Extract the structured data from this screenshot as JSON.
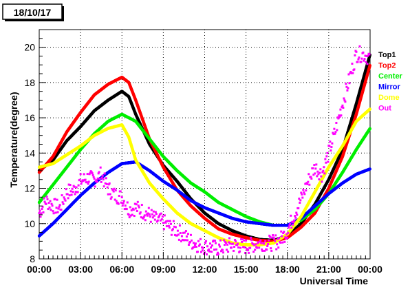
{
  "chart_data": {
    "type": "scatter",
    "title": "18/10/17",
    "xlabel": "Universal Time",
    "ylabel": "Temperature(degree)",
    "x_unit": "hours UT",
    "xlim": [
      0,
      24
    ],
    "ylim": [
      8,
      21
    ],
    "x_tick_labels": [
      "00:00",
      "03:00",
      "06:00",
      "09:00",
      "12:00",
      "15:00",
      "18:00",
      "21:00",
      "00:00"
    ],
    "x_tick_values": [
      0,
      3,
      6,
      9,
      12,
      15,
      18,
      21,
      24
    ],
    "y_tick_values": [
      8,
      10,
      12,
      14,
      16,
      18,
      20
    ],
    "grid": true,
    "legend_position": "right",
    "series": [
      {
        "name": "Top1",
        "color": "#000000",
        "points": [
          [
            0,
            13.0
          ],
          [
            1,
            13.6
          ],
          [
            2,
            14.7
          ],
          [
            3,
            15.5
          ],
          [
            4,
            16.4
          ],
          [
            5,
            17.0
          ],
          [
            6,
            17.5
          ],
          [
            6.5,
            17.2
          ],
          [
            7,
            16.2
          ],
          [
            8,
            14.5
          ],
          [
            9,
            13.3
          ],
          [
            10,
            12.4
          ],
          [
            11,
            11.4
          ],
          [
            12,
            10.6
          ],
          [
            13,
            10.0
          ],
          [
            14,
            9.6
          ],
          [
            15,
            9.3
          ],
          [
            16,
            9.1
          ],
          [
            17,
            9.05
          ],
          [
            18,
            9.3
          ],
          [
            19,
            10.0
          ],
          [
            20,
            11.1
          ],
          [
            21,
            12.5
          ],
          [
            22,
            14.2
          ],
          [
            23,
            16.8
          ],
          [
            24,
            19.6
          ]
        ]
      },
      {
        "name": "Top2",
        "color": "#ff0000",
        "points": [
          [
            0,
            12.9
          ],
          [
            1,
            13.8
          ],
          [
            2,
            15.2
          ],
          [
            3,
            16.3
          ],
          [
            4,
            17.3
          ],
          [
            5,
            17.9
          ],
          [
            6,
            18.3
          ],
          [
            6.5,
            18.0
          ],
          [
            7,
            17.0
          ],
          [
            8,
            14.8
          ],
          [
            9,
            13.2
          ],
          [
            10,
            11.9
          ],
          [
            11,
            11.0
          ],
          [
            12,
            10.3
          ],
          [
            13,
            9.7
          ],
          [
            14,
            9.4
          ],
          [
            15,
            9.2
          ],
          [
            16,
            9.05
          ],
          [
            17,
            9.0
          ],
          [
            18,
            9.2
          ],
          [
            19,
            9.8
          ],
          [
            20,
            10.6
          ],
          [
            21,
            12.0
          ],
          [
            22,
            13.8
          ],
          [
            23,
            16.2
          ],
          [
            24,
            19.0
          ]
        ]
      },
      {
        "name": "Center",
        "color": "#00ee00",
        "points": [
          [
            0,
            11.2
          ],
          [
            1,
            12.2
          ],
          [
            2,
            13.2
          ],
          [
            3,
            14.2
          ],
          [
            4,
            15.1
          ],
          [
            5,
            15.8
          ],
          [
            6,
            16.2
          ],
          [
            7,
            15.8
          ],
          [
            8,
            14.8
          ],
          [
            9,
            13.8
          ],
          [
            10,
            13.0
          ],
          [
            11,
            12.3
          ],
          [
            12,
            11.8
          ],
          [
            13,
            11.2
          ],
          [
            14,
            10.8
          ],
          [
            15,
            10.4
          ],
          [
            16,
            10.1
          ],
          [
            17,
            9.9
          ],
          [
            18,
            9.9
          ],
          [
            19,
            10.2
          ],
          [
            20,
            10.8
          ],
          [
            21,
            11.7
          ],
          [
            22,
            12.9
          ],
          [
            23,
            14.2
          ],
          [
            24,
            15.4
          ]
        ]
      },
      {
        "name": "Mirror",
        "color": "#0000ff",
        "points": [
          [
            0,
            9.3
          ],
          [
            1,
            10.0
          ],
          [
            2,
            10.8
          ],
          [
            3,
            11.6
          ],
          [
            4,
            12.3
          ],
          [
            5,
            12.9
          ],
          [
            6,
            13.4
          ],
          [
            7,
            13.5
          ],
          [
            8,
            13.0
          ],
          [
            9,
            12.4
          ],
          [
            10,
            11.9
          ],
          [
            11,
            11.3
          ],
          [
            12,
            10.9
          ],
          [
            13,
            10.6
          ],
          [
            14,
            10.3
          ],
          [
            15,
            10.1
          ],
          [
            16,
            10.0
          ],
          [
            17,
            9.9
          ],
          [
            18,
            9.9
          ],
          [
            19,
            10.3
          ],
          [
            20,
            11.0
          ],
          [
            21,
            11.7
          ],
          [
            22,
            12.3
          ],
          [
            23,
            12.8
          ],
          [
            24,
            13.1
          ]
        ]
      },
      {
        "name": "Dome",
        "color": "#ffff00",
        "points": [
          [
            0,
            13.2
          ],
          [
            1,
            13.4
          ],
          [
            2,
            13.9
          ],
          [
            3,
            14.4
          ],
          [
            4,
            15.0
          ],
          [
            5,
            15.4
          ],
          [
            6,
            15.6
          ],
          [
            6.5,
            14.9
          ],
          [
            7,
            13.6
          ],
          [
            8,
            12.3
          ],
          [
            9,
            11.4
          ],
          [
            10,
            10.6
          ],
          [
            11,
            10.0
          ],
          [
            12,
            9.6
          ],
          [
            13,
            9.2
          ],
          [
            14,
            8.9
          ],
          [
            15,
            8.8
          ],
          [
            16,
            8.8
          ],
          [
            17,
            8.9
          ],
          [
            18,
            9.4
          ],
          [
            19,
            10.4
          ],
          [
            20,
            11.8
          ],
          [
            21,
            13.2
          ],
          [
            22,
            14.4
          ],
          [
            23,
            15.8
          ],
          [
            24,
            16.5
          ]
        ]
      },
      {
        "name": "Out",
        "color": "#ff00ff",
        "points": [
          [
            0,
            10.6
          ],
          [
            0.5,
            11.3
          ],
          [
            1,
            11.0
          ],
          [
            1.5,
            10.9
          ],
          [
            2,
            11.8
          ],
          [
            2.5,
            11.9
          ],
          [
            3,
            12.4
          ],
          [
            3.5,
            12.6
          ],
          [
            4,
            12.5
          ],
          [
            4.5,
            12.8
          ],
          [
            5,
            12.0
          ],
          [
            5.5,
            11.6
          ],
          [
            6,
            11.5
          ],
          [
            6.5,
            10.8
          ],
          [
            7,
            10.9
          ],
          [
            7.5,
            10.7
          ],
          [
            8,
            10.5
          ],
          [
            8.5,
            10.2
          ],
          [
            9,
            10.1
          ],
          [
            9.5,
            9.8
          ],
          [
            10,
            9.6
          ],
          [
            10.5,
            9.3
          ],
          [
            11,
            9.0
          ],
          [
            11.5,
            8.8
          ],
          [
            12,
            8.7
          ],
          [
            13,
            8.6
          ],
          [
            14,
            8.8
          ],
          [
            15,
            8.7
          ],
          [
            16,
            8.9
          ],
          [
            17,
            8.9
          ],
          [
            17.5,
            9.1
          ],
          [
            18,
            9.6
          ],
          [
            18.5,
            10.5
          ],
          [
            19,
            11.4
          ],
          [
            19.5,
            12.4
          ],
          [
            20,
            13.2
          ],
          [
            20.5,
            12.8
          ],
          [
            21,
            14.0
          ],
          [
            21.5,
            15.3
          ],
          [
            22,
            16.8
          ],
          [
            22.5,
            18.2
          ],
          [
            23,
            19.6
          ],
          [
            23.5,
            19.6
          ],
          [
            24,
            19.4
          ]
        ]
      }
    ]
  }
}
